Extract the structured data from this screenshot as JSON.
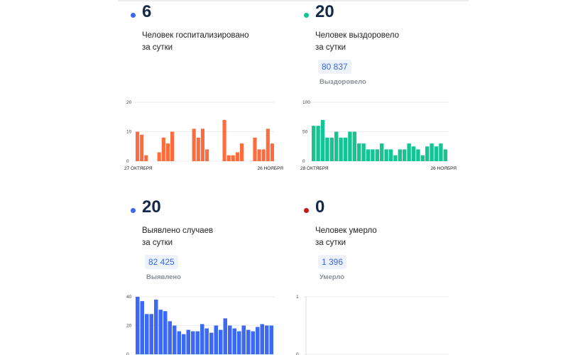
{
  "colors": {
    "hospitalized": "#ff6b3d",
    "recovered": "#14c493",
    "cases": "#3b68f5",
    "deaths": "#c61a1a",
    "value": "#14284b"
  },
  "cards": [
    {
      "id": "hospitalized",
      "value": "6",
      "label_line1": "Человек госпитализировано",
      "label_line2": "за сутки"
    },
    {
      "id": "recovered",
      "value": "20",
      "label_line1": "Человек выздоровело",
      "label_line2": "за сутки",
      "total": "80 837",
      "total_caption": "Выздоровело"
    },
    {
      "id": "cases",
      "value": "20",
      "label_line1": "Выявлено случаев",
      "label_line2": "за сутки",
      "total": "82 425",
      "total_caption": "Выявлено"
    },
    {
      "id": "deaths",
      "value": "0",
      "label_line1": "Человек умерло",
      "label_line2": "за сутки",
      "total": "1 396",
      "total_caption": "Умерло"
    }
  ],
  "chart_data": [
    {
      "type": "bar",
      "series_id": "hospitalized",
      "x_start_label": "27 ОКТЯБРЯ",
      "x_end_label": "26 НОЯБРЯ",
      "y_ticks": [
        20,
        10,
        0
      ],
      "ylim": [
        0,
        20
      ],
      "values": [
        10,
        9,
        2,
        0,
        0,
        3,
        8,
        6,
        10,
        0,
        0,
        0,
        0,
        11,
        8,
        11,
        4,
        0,
        0,
        0,
        14,
        2,
        2,
        3,
        6,
        0,
        0,
        8,
        4,
        4,
        11,
        6
      ]
    },
    {
      "type": "bar",
      "series_id": "recovered",
      "x_start_label": "28 ОКТЯБРЯ",
      "x_end_label": "26 НОЯБРЯ",
      "y_ticks": [
        100,
        50,
        0
      ],
      "ylim": [
        0,
        100
      ],
      "values": [
        60,
        60,
        70,
        40,
        40,
        50,
        40,
        40,
        50,
        50,
        30,
        30,
        20,
        20,
        20,
        30,
        20,
        20,
        10,
        20,
        20,
        30,
        25,
        20,
        10,
        25,
        30,
        25,
        30,
        20
      ]
    },
    {
      "type": "bar",
      "series_id": "cases",
      "y_ticks": [
        40,
        20,
        0
      ],
      "ylim": [
        0,
        40
      ],
      "values": [
        40,
        37,
        28,
        28,
        38,
        31,
        30,
        23,
        20,
        16,
        14,
        17,
        16,
        16,
        21,
        18,
        15,
        20,
        17,
        25,
        20,
        18,
        16,
        20,
        17,
        16,
        19,
        21,
        20,
        20
      ]
    },
    {
      "type": "bar",
      "series_id": "deaths",
      "y_ticks": [
        1,
        0
      ],
      "ylim": [
        0,
        1
      ],
      "values": []
    }
  ]
}
